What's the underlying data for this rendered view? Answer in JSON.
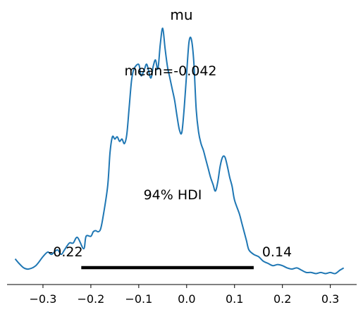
{
  "chart_data": {
    "type": "line",
    "title": "mu",
    "xlabel": "",
    "ylabel": "",
    "xlim": [
      -0.375,
      0.355
    ],
    "ylim": [
      0,
      1.0
    ],
    "x_ticks": [
      -0.3,
      -0.2,
      -0.1,
      0.0,
      0.1,
      0.2,
      0.3
    ],
    "x_tick_labels": [
      "−0.3",
      "−0.2",
      "−0.1",
      "0.0",
      "0.1",
      "0.2",
      "0.3"
    ],
    "grid": false,
    "legend": "none",
    "series": [
      {
        "color": "#1f77b4",
        "x": [
          -0.358,
          -0.35,
          -0.34,
          -0.33,
          -0.315,
          -0.3,
          -0.29,
          -0.282,
          -0.27,
          -0.262,
          -0.255,
          -0.245,
          -0.237,
          -0.228,
          -0.215,
          -0.21,
          -0.2,
          -0.195,
          -0.19,
          -0.185,
          -0.18,
          -0.175,
          -0.165,
          -0.16,
          -0.155,
          -0.15,
          -0.145,
          -0.14,
          -0.135,
          -0.13,
          -0.125,
          -0.12,
          -0.115,
          -0.11,
          -0.1,
          -0.095,
          -0.088,
          -0.083,
          -0.075,
          -0.07,
          -0.065,
          -0.06,
          -0.055,
          -0.05,
          -0.045,
          -0.04,
          -0.035,
          -0.03,
          -0.025,
          -0.02,
          -0.015,
          -0.01,
          -0.005,
          0.0,
          0.005,
          0.01,
          0.015,
          0.02,
          0.025,
          0.03,
          0.035,
          0.04,
          0.045,
          0.05,
          0.055,
          0.06,
          0.065,
          0.07,
          0.075,
          0.08,
          0.085,
          0.09,
          0.095,
          0.1,
          0.11,
          0.115,
          0.12,
          0.125,
          0.13,
          0.14,
          0.15,
          0.16,
          0.17,
          0.18,
          0.19,
          0.2,
          0.21,
          0.22,
          0.23,
          0.24,
          0.25,
          0.26,
          0.27,
          0.28,
          0.29,
          0.3,
          0.31,
          0.32,
          0.328
        ],
        "y": [
          0.02,
          0.0,
          -0.02,
          -0.025,
          -0.01,
          0.03,
          0.05,
          0.04,
          0.06,
          0.04,
          0.06,
          0.09,
          0.09,
          0.115,
          0.065,
          0.12,
          0.12,
          0.14,
          0.145,
          0.14,
          0.15,
          0.2,
          0.34,
          0.49,
          0.56,
          0.55,
          0.56,
          0.54,
          0.55,
          0.53,
          0.57,
          0.69,
          0.81,
          0.86,
          0.88,
          0.83,
          0.86,
          0.88,
          0.82,
          0.87,
          0.9,
          0.86,
          0.97,
          1.04,
          0.95,
          0.87,
          0.82,
          0.77,
          0.72,
          0.65,
          0.59,
          0.58,
          0.69,
          0.84,
          0.98,
          0.99,
          0.89,
          0.68,
          0.58,
          0.53,
          0.5,
          0.46,
          0.42,
          0.38,
          0.35,
          0.32,
          0.36,
          0.43,
          0.47,
          0.47,
          0.43,
          0.38,
          0.34,
          0.28,
          0.22,
          0.18,
          0.14,
          0.1,
          0.06,
          0.04,
          0.03,
          0.01,
          0.0,
          -0.01,
          -0.005,
          -0.01,
          -0.02,
          -0.025,
          -0.02,
          -0.03,
          -0.04,
          -0.04,
          -0.045,
          -0.04,
          -0.045,
          -0.04,
          -0.045,
          -0.03,
          -0.02
        ]
      }
    ],
    "annotations": {
      "mean_label": "mean=-0.042",
      "mean_value": -0.042,
      "hdi_label": "94% HDI",
      "hdi_low": -0.22,
      "hdi_high": 0.14,
      "hdi_low_label": "-0.22",
      "hdi_high_label": "0.14"
    }
  }
}
